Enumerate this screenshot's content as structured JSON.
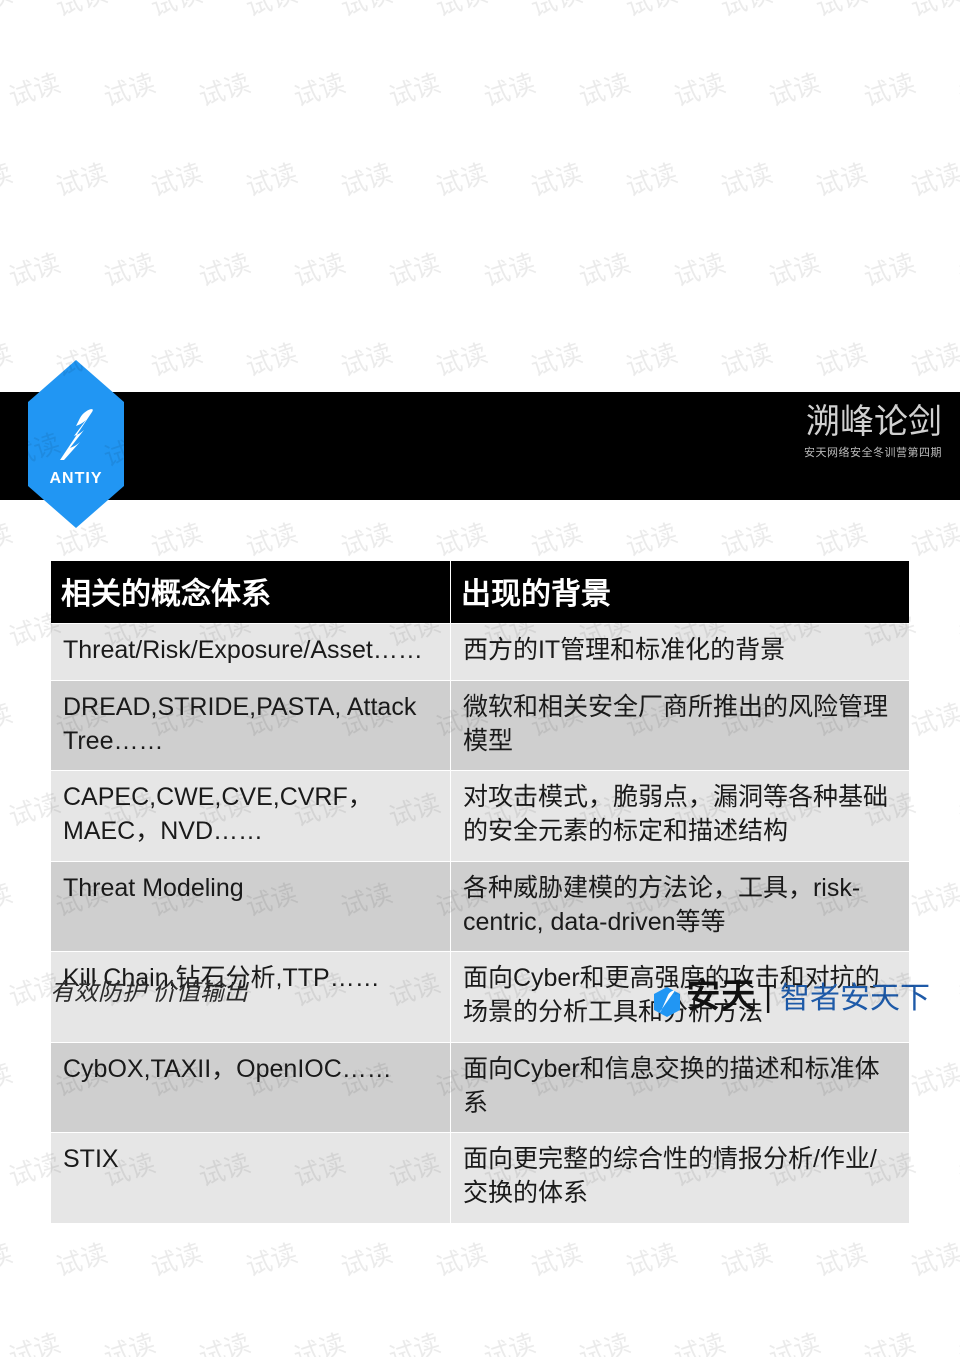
{
  "watermark": {
    "text": "试读",
    "color": "rgba(0,0,0,0.08)",
    "font_size": 26,
    "rotation_deg": -18
  },
  "logo": {
    "brand_text": "ANTIY",
    "hex_fill": "#2196f3",
    "feather_fill": "#ffffff",
    "text_color": "#ffffff"
  },
  "header_bar": {
    "background": "#000000"
  },
  "header_right": {
    "calligraphy": "溯峰论剑",
    "subtitle": "安天网络安全冬训营第四期",
    "text_color": "#d0d0d0"
  },
  "table": {
    "header_bg": "#000000",
    "header_fg": "#ffffff",
    "row_alt_a": "#e6e6e6",
    "row_alt_b": "#cfcfcf",
    "border_color": "#ffffff",
    "header_fontsize": 30,
    "cell_fontsize": 25,
    "columns": [
      "相关的概念体系",
      "出现的背景"
    ],
    "rows": [
      [
        "Threat/Risk/Exposure/Asset……",
        "西方的IT管理和标准化的背景"
      ],
      [
        "DREAD,STRIDE,PASTA, Attack Tree……",
        "微软和相关安全厂商所推出的风险管理模型"
      ],
      [
        "CAPEC,CWE,CVE,CVRF，MAEC，NVD……",
        "对攻击模式，脆弱点，漏洞等各种基础的安全元素的标定和描述结构"
      ],
      [
        "Threat Modeling",
        "各种威胁建模的方法论，工具，risk-centric, data-driven等等"
      ],
      [
        "Kill Chain,钻石分析,TTP……",
        "面向Cyber和更高强度的攻击和对抗的场景的分析工具和分析方法"
      ],
      [
        "CybOX,TAXII，OpenIOC……",
        "面向Cyber和信息交换的描述和标准体系"
      ],
      [
        "STIX",
        "面向更完整的综合性的情报分析/作业/交换的体系"
      ]
    ]
  },
  "footer": {
    "left_text": "有效防护 价值输出",
    "brand_main": "安天",
    "brand_sep": "|",
    "brand_tag": "智者安天下",
    "brand_tag_color": "#1e5aa8",
    "mini_logo_fill": "#2196f3"
  }
}
